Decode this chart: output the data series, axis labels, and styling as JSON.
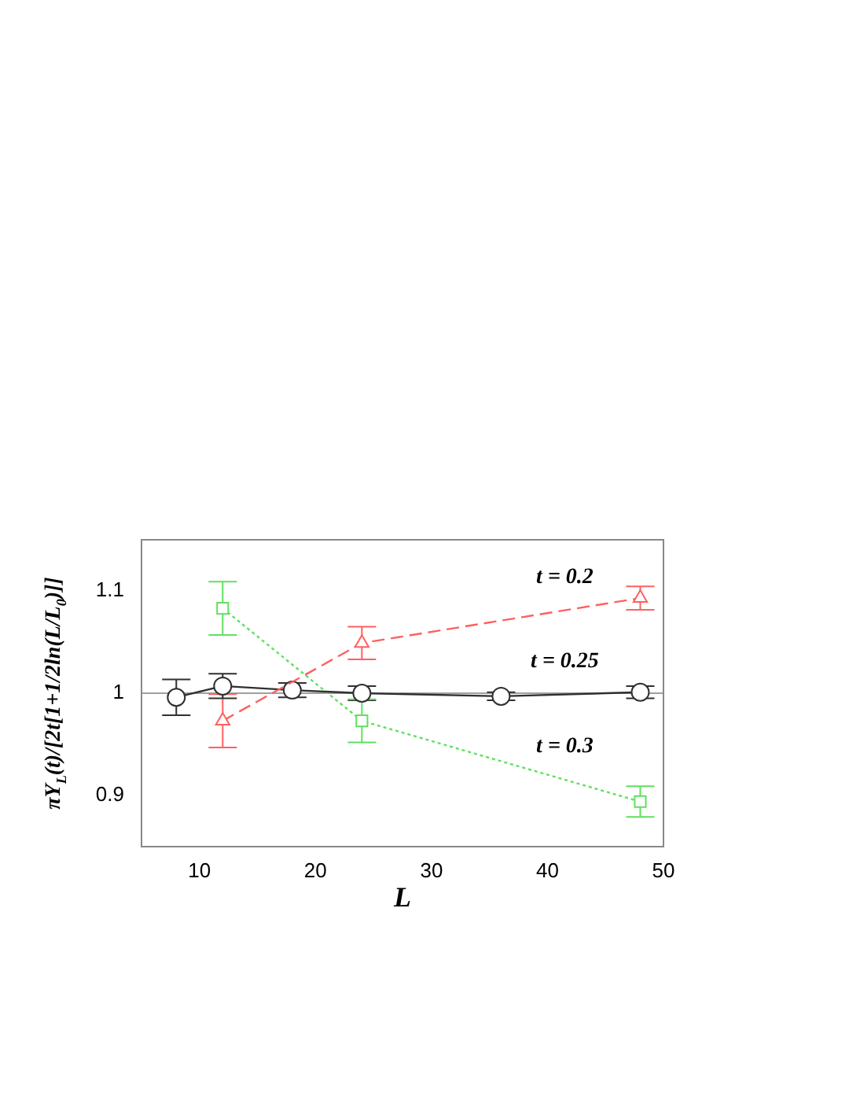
{
  "chart_data": {
    "type": "line",
    "xlabel": "L",
    "ylabel": "πY$_{L}$(t)/[2t[1+1/2ln(L/L$_{0}$)]]",
    "xlim": [
      5,
      50
    ],
    "xticks": [
      10,
      20,
      30,
      40,
      50
    ],
    "ylim": [
      0.85,
      1.15
    ],
    "yticks": [
      0.9,
      1,
      1.1
    ],
    "grid": false,
    "legend": false,
    "ref_lines": [
      {
        "axis": "y",
        "value": 1,
        "color": "#a0a0a0"
      }
    ],
    "series": [
      {
        "name": "t = 0.2",
        "color": "#ff6060",
        "marker": "triangle",
        "line_style": "dashed",
        "x": [
          12,
          24,
          48
        ],
        "values": [
          0.973,
          1.049,
          1.093
        ],
        "errors": [
          0.026,
          0.016,
          0.0115
        ]
      },
      {
        "name": "t = 0.25",
        "color": "#303030",
        "marker": "circle",
        "line_style": "solid",
        "x": [
          8,
          12,
          18,
          24,
          36,
          48
        ],
        "values": [
          0.996,
          1.007,
          1.003,
          1.0,
          0.997,
          1.001
        ],
        "errors": [
          0.0175,
          0.012,
          0.007,
          0.007,
          0.004,
          0.006
        ]
      },
      {
        "name": "t = 0.3",
        "color": "#60e060",
        "marker": "square",
        "line_style": "dotted",
        "x": [
          12,
          24,
          48
        ],
        "values": [
          1.083,
          0.973,
          0.894
        ],
        "errors": [
          0.026,
          0.021,
          0.015
        ]
      }
    ]
  }
}
